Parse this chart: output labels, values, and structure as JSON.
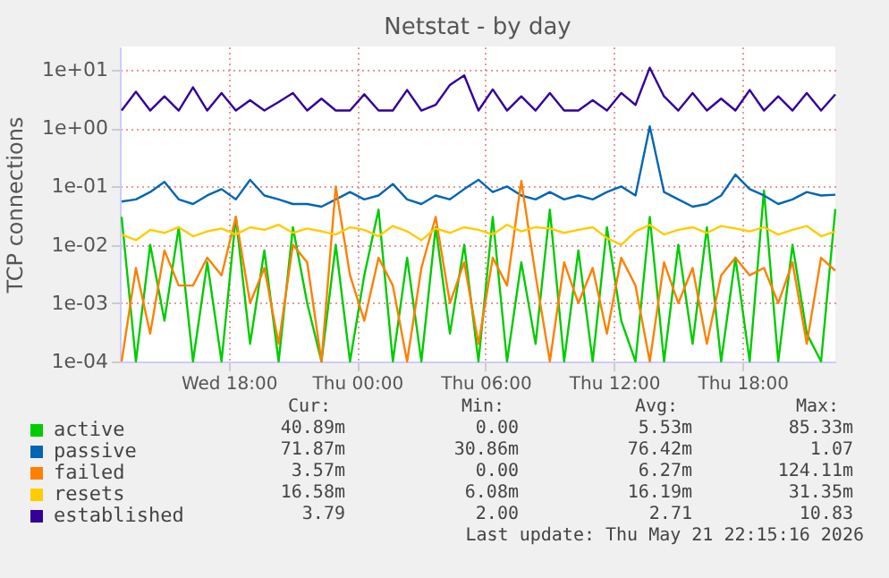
{
  "chart_data": {
    "type": "line",
    "title": "Netstat - by day",
    "ylabel": "TCP connections",
    "log": "y",
    "grid": true,
    "legend": "bottom left",
    "marker": "none",
    "line_style": "solid",
    "xlim": [
      "2026-05-20T12:55",
      "2026-05-21T22:20"
    ],
    "xticks": [
      {
        "value": "2026-05-20T18:00",
        "label": "Wed 18:00"
      },
      {
        "value": "2026-05-21T00:00",
        "label": "Thu 00:00"
      },
      {
        "value": "2026-05-21T06:00",
        "label": "Thu 06:00"
      },
      {
        "value": "2026-05-21T12:00",
        "label": "Thu 12:00"
      },
      {
        "value": "2026-05-21T18:00",
        "label": "Thu 18:00"
      }
    ],
    "ylim": [
      0.0001,
      25
    ],
    "yticks": [
      {
        "value": 0.0001,
        "label": "1e-04"
      },
      {
        "value": 0.001,
        "label": "1e-03"
      },
      {
        "value": 0.01,
        "label": "1e-02"
      },
      {
        "value": 0.1,
        "label": "1e-01"
      },
      {
        "value": 1,
        "label": "1e+00"
      },
      {
        "value": 10,
        "label": "1e+01"
      }
    ],
    "x": [
      "2026-05-20T13:00",
      "2026-05-20T13:40",
      "2026-05-20T14:20",
      "2026-05-20T15:00",
      "2026-05-20T15:40",
      "2026-05-20T16:20",
      "2026-05-20T17:00",
      "2026-05-20T17:40",
      "2026-05-20T18:20",
      "2026-05-20T19:00",
      "2026-05-20T19:40",
      "2026-05-20T20:20",
      "2026-05-20T21:00",
      "2026-05-20T21:40",
      "2026-05-20T22:20",
      "2026-05-20T23:00",
      "2026-05-20T23:40",
      "2026-05-21T00:20",
      "2026-05-21T01:00",
      "2026-05-21T01:40",
      "2026-05-21T02:20",
      "2026-05-21T03:00",
      "2026-05-21T03:40",
      "2026-05-21T04:20",
      "2026-05-21T05:00",
      "2026-05-21T05:40",
      "2026-05-21T06:20",
      "2026-05-21T07:00",
      "2026-05-21T07:40",
      "2026-05-21T08:20",
      "2026-05-21T09:00",
      "2026-05-21T09:40",
      "2026-05-21T10:20",
      "2026-05-21T11:00",
      "2026-05-21T11:40",
      "2026-05-21T12:20",
      "2026-05-21T13:00",
      "2026-05-21T13:40",
      "2026-05-21T14:20",
      "2026-05-21T15:00",
      "2026-05-21T15:40",
      "2026-05-21T16:20",
      "2026-05-21T17:00",
      "2026-05-21T17:40",
      "2026-05-21T18:20",
      "2026-05-21T19:00",
      "2026-05-21T19:40",
      "2026-05-21T20:20",
      "2026-05-21T21:00",
      "2026-05-21T21:40",
      "2026-05-21T22:20"
    ],
    "series": [
      {
        "name": "active",
        "color": "#00cc00",
        "values": [
          0.03,
          0.0001,
          0.01,
          0.0005,
          0.02,
          0.0001,
          0.005,
          0.0001,
          0.03,
          0.0002,
          0.008,
          0.0001,
          0.02,
          0.001,
          0.0001,
          0.01,
          0.0001,
          0.003,
          0.04,
          0.0001,
          0.006,
          0.0001,
          0.02,
          0.0003,
          0.01,
          0.0001,
          0.03,
          0.0001,
          0.005,
          0.0002,
          0.04,
          0.0001,
          0.008,
          0.0001,
          0.02,
          0.0005,
          0.0001,
          0.03,
          0.0001,
          0.01,
          0.0002,
          0.02,
          0.0001,
          0.006,
          0.0001,
          0.085,
          0.0001,
          0.01,
          0.0003,
          0.0001,
          0.041
        ]
      },
      {
        "name": "passive",
        "color": "#0066b3",
        "values": [
          0.055,
          0.06,
          0.08,
          0.12,
          0.06,
          0.05,
          0.07,
          0.09,
          0.06,
          0.13,
          0.07,
          0.06,
          0.05,
          0.05,
          0.045,
          0.06,
          0.08,
          0.06,
          0.07,
          0.11,
          0.06,
          0.05,
          0.07,
          0.06,
          0.09,
          0.13,
          0.08,
          0.1,
          0.07,
          0.06,
          0.08,
          0.06,
          0.07,
          0.06,
          0.08,
          0.1,
          0.07,
          1.07,
          0.08,
          0.06,
          0.045,
          0.05,
          0.07,
          0.16,
          0.09,
          0.07,
          0.05,
          0.06,
          0.08,
          0.07,
          0.072
        ]
      },
      {
        "name": "failed",
        "color": "#ff8000",
        "values": [
          0.0001,
          0.004,
          0.0003,
          0.008,
          0.002,
          0.002,
          0.006,
          0.003,
          0.03,
          0.001,
          0.004,
          0.0002,
          0.01,
          0.005,
          0.0001,
          0.1,
          0.003,
          0.0005,
          0.006,
          0.002,
          0.0001,
          0.004,
          0.03,
          0.001,
          0.005,
          0.0002,
          0.006,
          0.002,
          0.124,
          0.003,
          0.0001,
          0.005,
          0.001,
          0.004,
          0.0003,
          0.006,
          0.002,
          0.0001,
          0.005,
          0.001,
          0.004,
          0.0002,
          0.003,
          0.006,
          0.003,
          0.004,
          0.001,
          0.005,
          0.0002,
          0.006,
          0.0036
        ]
      },
      {
        "name": "resets",
        "color": "#ffcc00",
        "values": [
          0.015,
          0.012,
          0.018,
          0.016,
          0.02,
          0.014,
          0.017,
          0.019,
          0.015,
          0.02,
          0.018,
          0.022,
          0.016,
          0.019,
          0.017,
          0.015,
          0.02,
          0.018,
          0.014,
          0.021,
          0.017,
          0.012,
          0.019,
          0.016,
          0.02,
          0.018,
          0.015,
          0.022,
          0.017,
          0.02,
          0.019,
          0.016,
          0.018,
          0.02,
          0.013,
          0.01,
          0.017,
          0.022,
          0.015,
          0.018,
          0.02,
          0.016,
          0.021,
          0.019,
          0.017,
          0.02,
          0.015,
          0.018,
          0.021,
          0.014,
          0.017
        ]
      },
      {
        "name": "established",
        "color": "#330099",
        "values": [
          2,
          4.2,
          2,
          3.5,
          2,
          5,
          2,
          4,
          2,
          3,
          2,
          2.8,
          4,
          2,
          3.2,
          2,
          2,
          3.8,
          2,
          2,
          4.5,
          2,
          2.5,
          5.5,
          8,
          2,
          4.6,
          2,
          3.5,
          2,
          4,
          2,
          2,
          3,
          2,
          4,
          2.5,
          10.83,
          3.5,
          2,
          4,
          2,
          3.2,
          2,
          4.5,
          2,
          3.5,
          2,
          4,
          2,
          3.79
        ]
      }
    ],
    "annotations": [
      "Cur:",
      "Min:",
      "Avg:",
      "Max:",
      "40.89m",
      "0.00",
      "5.53m",
      "85.33m",
      "71.87m",
      "30.86m",
      "76.42m",
      "1.07",
      "3.57m",
      "0.00",
      "6.27m",
      "124.11m",
      "16.58m",
      "6.08m",
      "16.19m",
      "31.35m",
      "3.79",
      "2.00",
      "2.71",
      "10.83",
      "Last update: Thu May 21 22:15:16 2026"
    ]
  }
}
